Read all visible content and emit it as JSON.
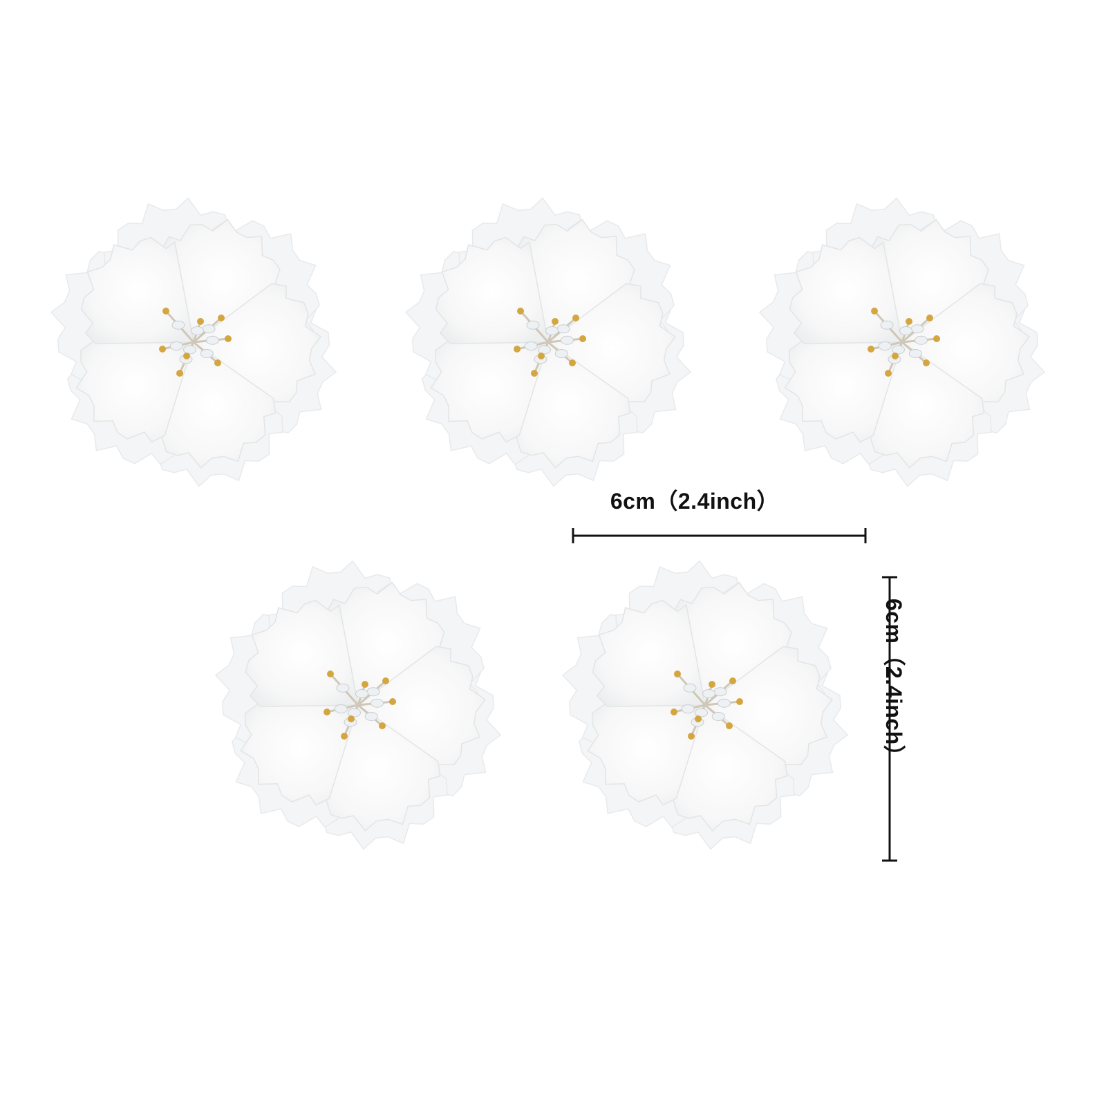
{
  "product": {
    "item_count": 5,
    "petal_color": "#ffffff",
    "center_color": "#d4a640"
  },
  "dimensions": {
    "width_label": "6cm（2.4inch）",
    "height_label": "6cm（2.4inch）"
  }
}
